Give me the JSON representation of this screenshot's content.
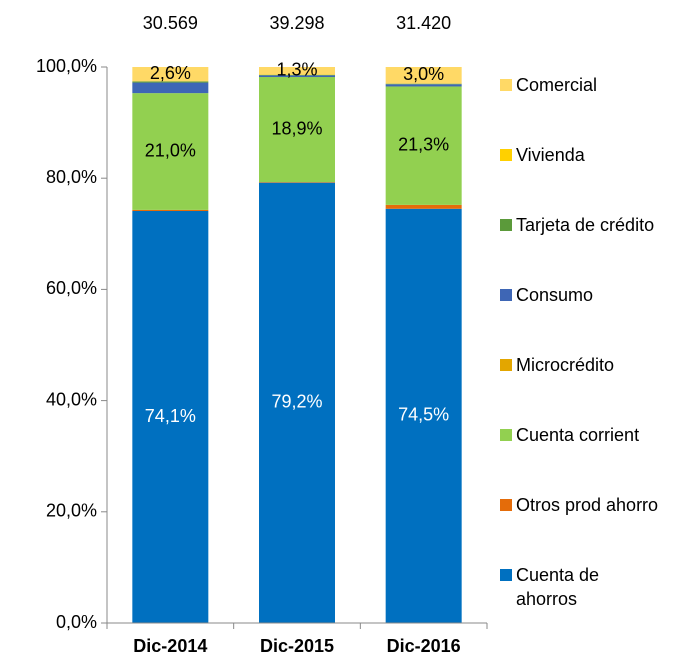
{
  "chart_data": {
    "type": "stacked_bar_100",
    "categories": [
      "Dic-2014",
      "Dic-2015",
      "Dic-2016"
    ],
    "totals": [
      {
        "value": 30569,
        "label": "30.569"
      },
      {
        "value": 39298,
        "label": "39.298"
      },
      {
        "value": 31420,
        "label": "31.420"
      }
    ],
    "series": [
      {
        "name": "Cuenta de ahorros",
        "color": "#0070C0",
        "values": [
          74.1,
          79.2,
          74.5
        ],
        "value_labels": [
          "74,1%",
          "79,2%",
          "74,5%"
        ]
      },
      {
        "name": "Otros prod ahorro",
        "color": "#E46C0A",
        "values": [
          0.2,
          0.1,
          0.7
        ]
      },
      {
        "name": "Cuenta corrient",
        "color": "#92D050",
        "values": [
          21.0,
          18.9,
          21.3
        ],
        "value_labels": [
          "21,0%",
          "18,9%",
          "21,3%"
        ]
      },
      {
        "name": "Microcrédito",
        "color": "#E3A600",
        "values": [
          0,
          0,
          0
        ]
      },
      {
        "name": "Consumo",
        "color": "#3E66B5",
        "values": [
          1.9,
          0.3,
          0.4
        ]
      },
      {
        "name": "Tarjeta de crédito",
        "color": "#5B9A3A",
        "values": [
          0.2,
          0.1,
          0.1
        ]
      },
      {
        "name": "Vivienda",
        "color": "#FFD000",
        "values": [
          0,
          0.1,
          0
        ]
      },
      {
        "name": "Comercial",
        "color": "#FFD966",
        "values": [
          2.6,
          1.3,
          3.0
        ],
        "value_labels": [
          "2,6%",
          "1,3%",
          "3,0%"
        ]
      }
    ],
    "ylim": [
      0,
      100
    ],
    "yticks": [
      {
        "value": 0,
        "label": "0,0%"
      },
      {
        "value": 20,
        "label": "20,0%"
      },
      {
        "value": 40,
        "label": "40,0%"
      },
      {
        "value": 60,
        "label": "60,0%"
      },
      {
        "value": 80,
        "label": "80,0%"
      },
      {
        "value": 100,
        "label": "100,0%"
      }
    ],
    "legend": "right"
  }
}
